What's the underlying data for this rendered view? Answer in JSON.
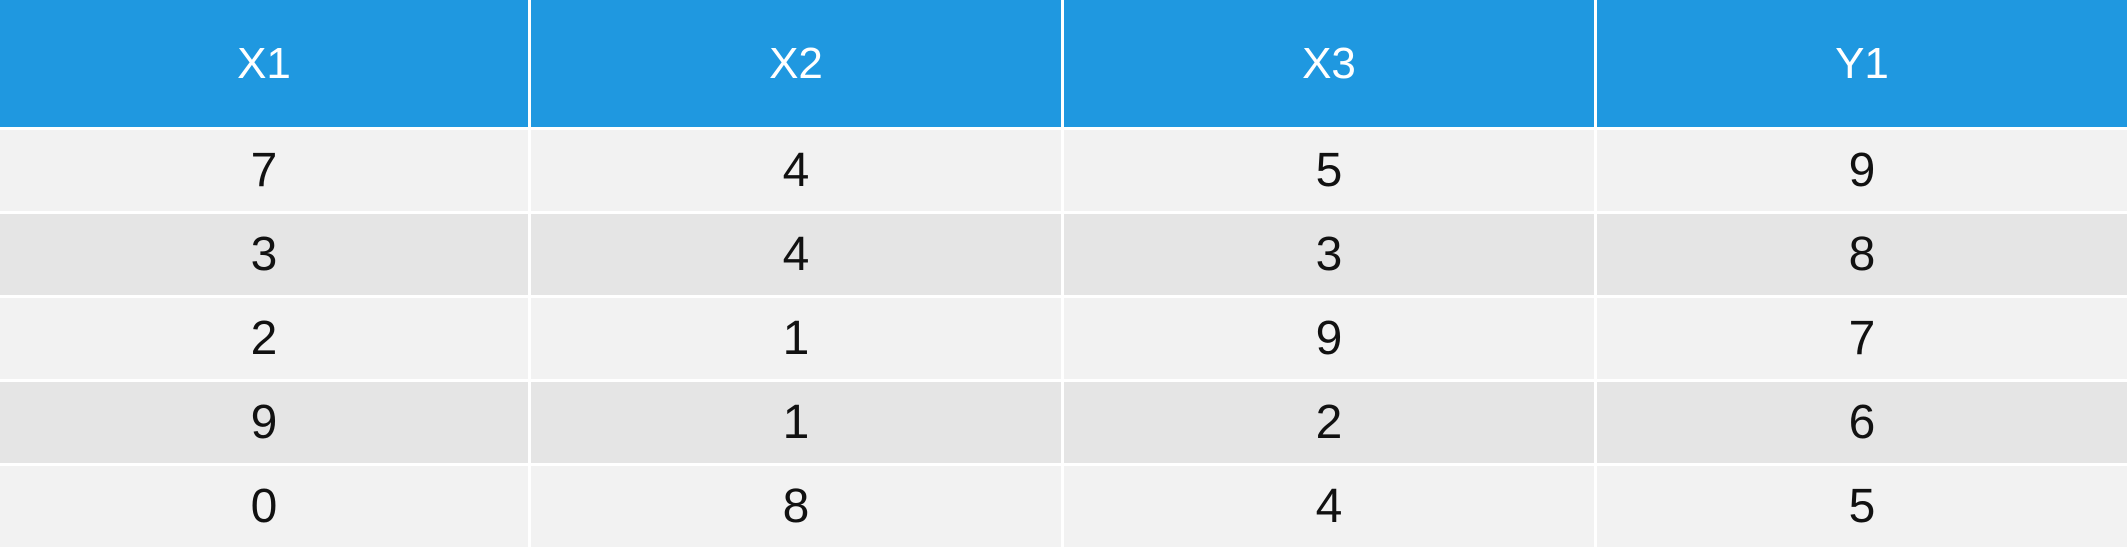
{
  "table": {
    "headers": [
      "X1",
      "X2",
      "X3",
      "Y1"
    ],
    "rows": [
      [
        "7",
        "4",
        "5",
        "9"
      ],
      [
        "3",
        "4",
        "3",
        "8"
      ],
      [
        "2",
        "1",
        "9",
        "7"
      ],
      [
        "9",
        "1",
        "2",
        "6"
      ],
      [
        "0",
        "8",
        "4",
        "5"
      ]
    ]
  },
  "colors": {
    "header_bg": "#1f98e0",
    "header_text": "#ffffff",
    "row_light": "#f2f2f2",
    "row_dark": "#e5e5e5"
  }
}
